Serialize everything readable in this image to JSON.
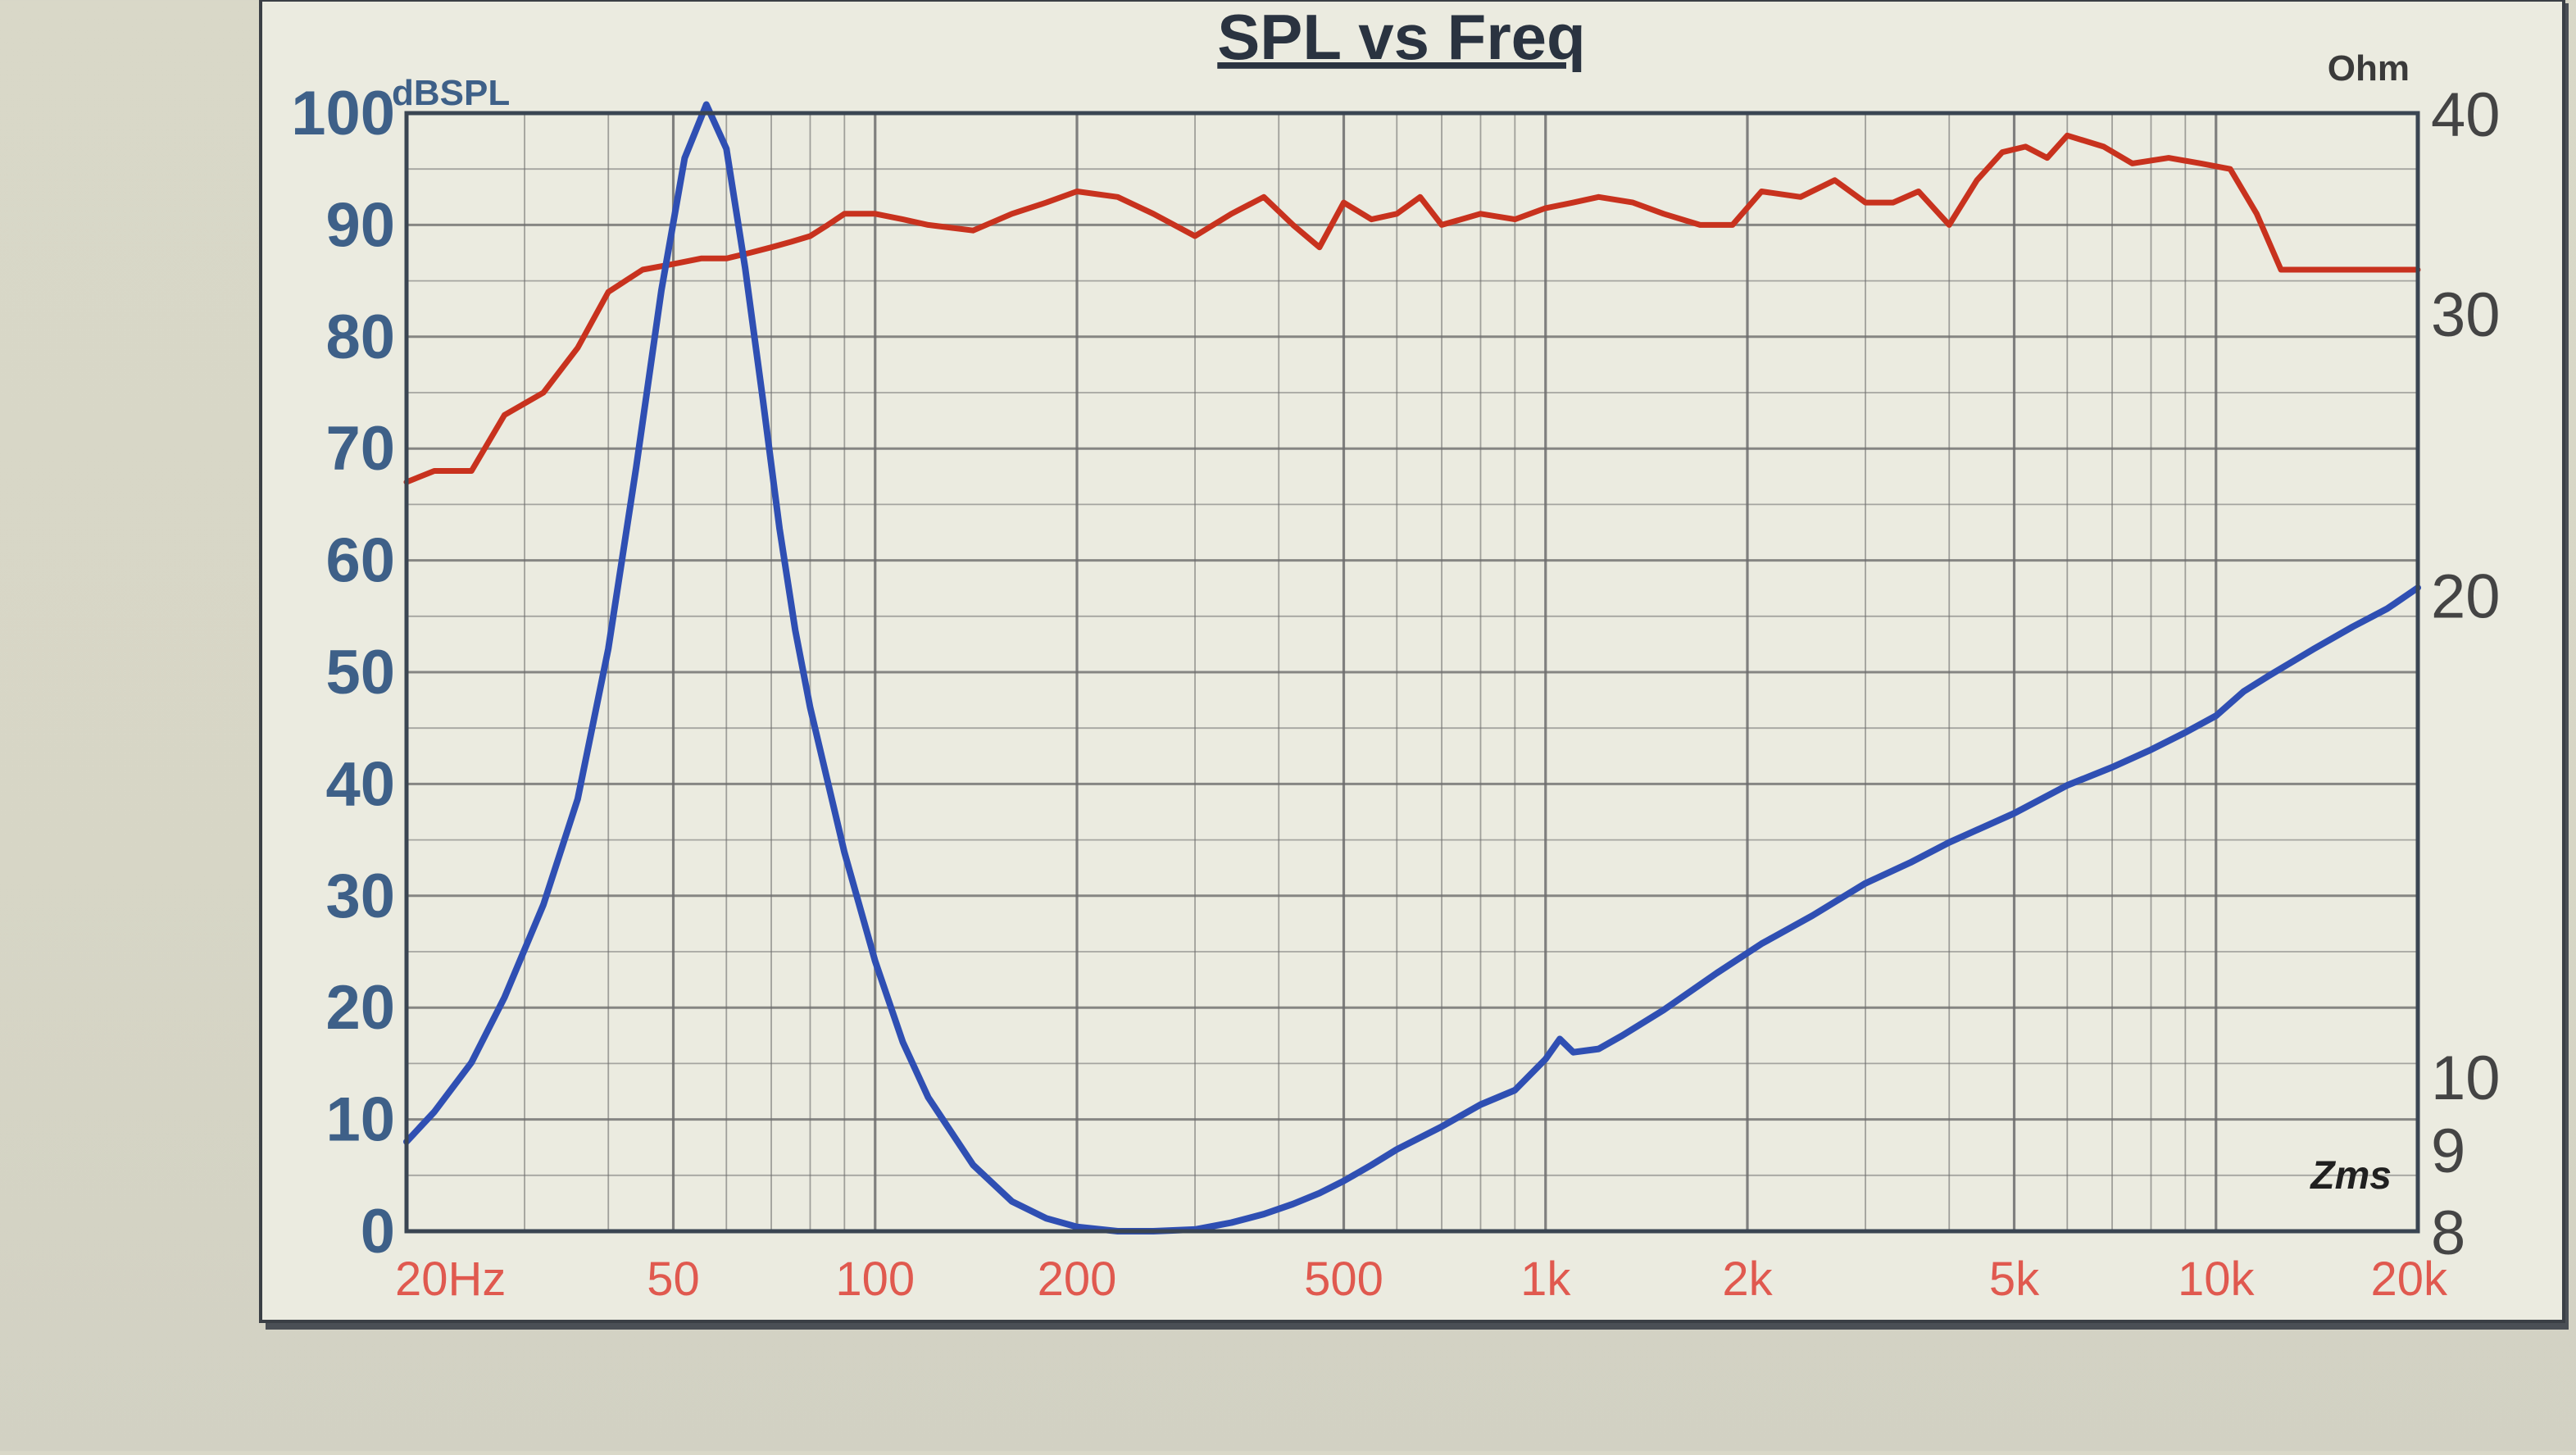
{
  "chart_data": {
    "type": "line",
    "title": "SPL vs Freq",
    "x_scale": "log",
    "xlim": [
      20,
      20000
    ],
    "grid": true,
    "x_tick_labels": [
      {
        "value": 20,
        "label": "20Hz"
      },
      {
        "value": 50,
        "label": "50"
      },
      {
        "value": 100,
        "label": "100"
      },
      {
        "value": 200,
        "label": "200"
      },
      {
        "value": 500,
        "label": "500"
      },
      {
        "value": 1000,
        "label": "1k"
      },
      {
        "value": 2000,
        "label": "2k"
      },
      {
        "value": 5000,
        "label": "5k"
      },
      {
        "value": 10000,
        "label": "10k"
      },
      {
        "value": 20000,
        "label": "20k"
      }
    ],
    "y_left": {
      "unit": "dBSPL",
      "lim": [
        0,
        100
      ],
      "ticks": [
        0,
        10,
        20,
        30,
        40,
        50,
        60,
        70,
        80,
        90,
        100
      ]
    },
    "y_right": {
      "unit": "Ohm",
      "scale": "log",
      "lim": [
        8,
        40
      ],
      "ticks": [
        {
          "value": 8,
          "label": "8"
        },
        {
          "value": 9,
          "label": "9"
        },
        {
          "value": 10,
          "label": "10"
        },
        {
          "value": 20,
          "label": "20"
        },
        {
          "value": 30,
          "label": "30"
        },
        {
          "value": 40,
          "label": "40"
        }
      ]
    },
    "corner_label": "Zms",
    "colors": {
      "spl": "#c8321e",
      "impedance": "#2f4fb3",
      "left_axis_text": "#3e6088",
      "x_axis_text": "#e0594f",
      "frame": "#3a4552",
      "grid": "#6d6d6d"
    },
    "series": [
      {
        "axis": "left",
        "x": [
          20,
          22,
          25,
          28,
          32,
          36,
          40,
          45,
          50,
          55,
          60,
          65,
          70,
          75,
          80,
          85,
          90,
          95,
          100,
          110,
          120,
          140,
          160,
          180,
          200,
          230,
          260,
          300,
          340,
          380,
          420,
          460,
          500,
          550,
          600,
          650,
          700,
          800,
          900,
          1000,
          1100,
          1200,
          1350,
          1500,
          1700,
          1900,
          2100,
          2400,
          2700,
          3000,
          3300,
          3600,
          4000,
          4400,
          4800,
          5200,
          5600,
          6000,
          6800,
          7500,
          8500,
          9500,
          10500,
          11500,
          12500,
          14000,
          15500,
          17000,
          18500,
          20000
        ],
        "values": [
          67,
          68,
          68,
          73,
          75,
          79,
          84,
          86,
          86.5,
          87,
          87,
          87.5,
          88,
          88.5,
          89,
          90,
          91,
          91,
          91,
          90.5,
          90,
          89.5,
          91,
          92,
          93,
          92.5,
          91,
          89,
          91,
          92.5,
          90,
          88,
          92,
          90.5,
          91,
          92.5,
          90,
          91,
          90.5,
          91.5,
          92,
          92.5,
          92,
          91,
          90,
          90,
          93,
          92.5,
          94,
          92,
          92,
          93,
          90,
          94,
          96.5,
          97,
          96,
          98,
          97,
          95.5,
          96,
          95.5,
          95,
          91,
          86,
          86,
          86,
          86,
          86,
          86
        ]
      },
      {
        "axis": "right",
        "x": [
          20,
          22,
          25,
          28,
          32,
          36,
          40,
          44,
          48,
          52,
          56,
          60,
          64,
          68,
          72,
          76,
          80,
          90,
          100,
          110,
          120,
          140,
          160,
          180,
          200,
          230,
          260,
          300,
          340,
          380,
          420,
          460,
          500,
          550,
          600,
          700,
          800,
          900,
          1000,
          1050,
          1100,
          1200,
          1300,
          1500,
          1800,
          2100,
          2500,
          3000,
          3500,
          4000,
          5000,
          6000,
          7000,
          8000,
          9000,
          10000,
          11000,
          12000,
          14000,
          16000,
          18000,
          20000
        ],
        "values": [
          9.1,
          9.5,
          10.2,
          11.2,
          12.8,
          14.9,
          18.5,
          24.0,
          31.0,
          37.5,
          40.5,
          38.0,
          32.0,
          26.5,
          22.0,
          19.0,
          17.0,
          13.8,
          11.8,
          10.5,
          9.7,
          8.8,
          8.35,
          8.15,
          8.05,
          8.0,
          8.0,
          8.02,
          8.1,
          8.2,
          8.32,
          8.45,
          8.6,
          8.8,
          9.0,
          9.3,
          9.6,
          9.8,
          10.25,
          10.55,
          10.35,
          10.4,
          10.6,
          11.0,
          11.6,
          12.1,
          12.6,
          13.2,
          13.6,
          14.0,
          14.6,
          15.2,
          15.6,
          16.0,
          16.4,
          16.8,
          17.4,
          17.8,
          18.5,
          19.1,
          19.6,
          20.2
        ]
      }
    ]
  }
}
